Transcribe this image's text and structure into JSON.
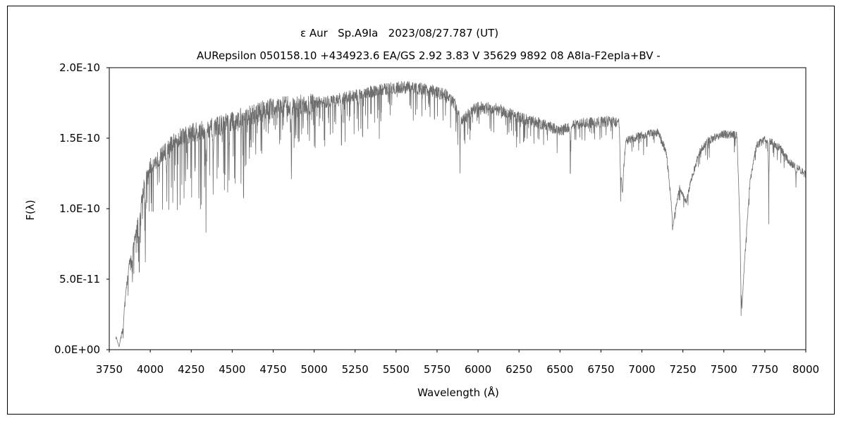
{
  "chart_data": {
    "type": "line",
    "title": "ε Aur   Sp.A9Ia   2023/08/27.787 (UT)",
    "subtitle": "AURepsilon 050158.10 +434923.6 EA/GS 2.92 3.83 V 35629 9892 08 A8Ia-F2epIa+BV -",
    "xlabel": "Wavelength (Å)",
    "ylabel": "F(λ)",
    "xlim": [
      3750,
      8000
    ],
    "ylim": [
      0,
      2e-10
    ],
    "grid": false,
    "line_color": "#6e6e6e",
    "x_ticks": [
      3750,
      4000,
      4250,
      4500,
      4750,
      5000,
      5250,
      5500,
      5750,
      6000,
      6250,
      6500,
      6750,
      7000,
      7250,
      7500,
      7750,
      8000
    ],
    "x_tick_labels": [
      "3750",
      "4000",
      "4250",
      "4500",
      "4750",
      "5000",
      "5250",
      "5500",
      "5750",
      "6000",
      "6250",
      "6500",
      "6750",
      "7000",
      "7250",
      "7500",
      "7750",
      "8000"
    ],
    "y_ticks": [
      0,
      5e-11,
      1e-10,
      1.5e-10,
      2e-10
    ],
    "y_tick_labels": [
      "0.0E+00",
      "5.0E-11",
      "1.0E-10",
      "1.5E-10",
      "2.0E-10"
    ],
    "continuum": [
      [
        3790,
        1e-11
      ],
      [
        3810,
        2e-12
      ],
      [
        3830,
        1.5e-11
      ],
      [
        3850,
        4e-11
      ],
      [
        3870,
        6e-11
      ],
      [
        3900,
        7.5e-11
      ],
      [
        3930,
        9.5e-11
      ],
      [
        3960,
        1.15e-10
      ],
      [
        4000,
        1.3e-10
      ],
      [
        4050,
        1.35e-10
      ],
      [
        4100,
        1.42e-10
      ],
      [
        4150,
        1.48e-10
      ],
      [
        4200,
        1.52e-10
      ],
      [
        4300,
        1.55e-10
      ],
      [
        4400,
        1.58e-10
      ],
      [
        4500,
        1.62e-10
      ],
      [
        4600,
        1.66e-10
      ],
      [
        4700,
        1.7e-10
      ],
      [
        4800,
        1.72e-10
      ],
      [
        4900,
        1.73e-10
      ],
      [
        5000,
        1.75e-10
      ],
      [
        5100,
        1.76e-10
      ],
      [
        5200,
        1.79e-10
      ],
      [
        5300,
        1.82e-10
      ],
      [
        5400,
        1.84e-10
      ],
      [
        5500,
        1.86e-10
      ],
      [
        5600,
        1.86e-10
      ],
      [
        5700,
        1.84e-10
      ],
      [
        5800,
        1.81e-10
      ],
      [
        5850,
        1.76e-10
      ],
      [
        5900,
        1.62e-10
      ],
      [
        5950,
        1.68e-10
      ],
      [
        6000,
        1.72e-10
      ],
      [
        6100,
        1.71e-10
      ],
      [
        6200,
        1.67e-10
      ],
      [
        6300,
        1.63e-10
      ],
      [
        6400,
        1.6e-10
      ],
      [
        6500,
        1.55e-10
      ],
      [
        6550,
        1.58e-10
      ],
      [
        6600,
        1.6e-10
      ],
      [
        6700,
        1.61e-10
      ],
      [
        6800,
        1.62e-10
      ],
      [
        6860,
        1.61e-10
      ],
      [
        6880,
        1.1e-10
      ],
      [
        6900,
        1.48e-10
      ],
      [
        6950,
        1.5e-10
      ],
      [
        7000,
        1.52e-10
      ],
      [
        7100,
        1.54e-10
      ],
      [
        7150,
        1.4e-10
      ],
      [
        7190,
        9e-11
      ],
      [
        7230,
        1.15e-10
      ],
      [
        7270,
        1.05e-10
      ],
      [
        7300,
        1.2e-10
      ],
      [
        7350,
        1.4e-10
      ],
      [
        7400,
        1.48e-10
      ],
      [
        7500,
        1.53e-10
      ],
      [
        7580,
        1.52e-10
      ],
      [
        7600,
        8e-11
      ],
      [
        7610,
        3e-11
      ],
      [
        7630,
        7e-11
      ],
      [
        7660,
        1.2e-10
      ],
      [
        7700,
        1.45e-10
      ],
      [
        7750,
        1.49e-10
      ],
      [
        7800,
        1.47e-10
      ],
      [
        7850,
        1.42e-10
      ],
      [
        7900,
        1.33e-10
      ],
      [
        7950,
        1.29e-10
      ],
      [
        8000,
        1.24e-10
      ]
    ],
    "absorption_lines": [
      [
        3835,
        8e-12
      ],
      [
        3889,
        5.5e-11
      ],
      [
        3933,
        5.5e-11
      ],
      [
        3970,
        6.2e-11
      ],
      [
        4101,
        1.05e-10
      ],
      [
        4227,
        1.28e-10
      ],
      [
        4340,
        8.3e-11
      ],
      [
        4384,
        1.1e-10
      ],
      [
        4481,
        1.2e-10
      ],
      [
        4861,
        1.21e-10
      ],
      [
        5167,
        1.45e-10
      ],
      [
        5270,
        1.55e-10
      ],
      [
        5890,
        1.25e-10
      ],
      [
        6563,
        1.25e-10
      ],
      [
        6870,
        1.05e-10
      ],
      [
        7187,
        8.5e-11
      ],
      [
        7605,
        2.4e-11
      ],
      [
        7774,
        8.9e-11
      ],
      [
        7940,
        1.15e-10
      ]
    ]
  }
}
